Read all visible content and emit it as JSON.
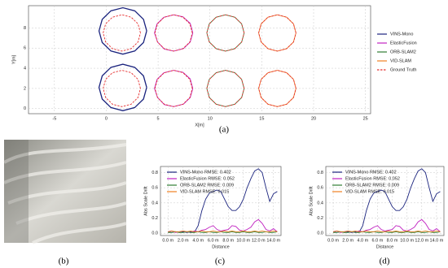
{
  "photo": {
    "label": "(b)"
  },
  "chart_data": [
    {
      "type": "line",
      "label": "(a)",
      "xlabel": "X[m]",
      "ylabel": "Y[m]",
      "xlim": [
        -7.5,
        25.5
      ],
      "ylim": [
        -0.5,
        10.2
      ],
      "xticks": [
        -5,
        0,
        5,
        10,
        15,
        20,
        25
      ],
      "yticks": [
        0,
        2,
        4,
        6,
        8
      ],
      "grid": true,
      "legend": "right",
      "series": [
        {
          "name": "VINS-Mono",
          "color": "#1a237e",
          "dashed": false,
          "x": [
            3.9,
            3.59,
            2.75,
            1.6,
            0.45,
            -0.39,
            -0.7,
            -0.39,
            0.45,
            1.6,
            2.75,
            3.59,
            3.9,
            null,
            3.9,
            3.59,
            2.75,
            1.6,
            0.45,
            -0.39,
            -0.7,
            -0.39,
            0.45,
            1.6,
            2.75,
            3.59,
            3.9
          ],
          "values": [
            7.7,
            8.85,
            9.69,
            10.0,
            9.69,
            8.85,
            7.7,
            6.55,
            5.71,
            5.4,
            5.71,
            6.55,
            7.7,
            null,
            2.1,
            3.25,
            4.09,
            4.4,
            4.09,
            3.25,
            2.1,
            0.95,
            0.11,
            -0.2,
            0.11,
            0.95,
            2.1
          ]
        },
        {
          "name": "ElasticFusion",
          "color": "#c020c0",
          "dashed": false,
          "x": [
            8.35,
            8.1,
            7.4,
            6.5,
            5.55,
            4.9,
            4.65,
            4.95,
            5.6,
            6.5,
            7.45,
            8.1,
            8.35,
            null,
            8.35,
            8.1,
            7.4,
            6.5,
            5.55,
            4.9,
            4.65,
            4.95,
            5.6,
            6.5,
            7.45,
            8.1,
            8.35
          ],
          "values": [
            7.5,
            8.45,
            9.1,
            9.3,
            9.05,
            8.4,
            7.5,
            6.6,
            5.9,
            5.7,
            5.95,
            6.6,
            7.5,
            null,
            2,
            2.95,
            3.6,
            3.8,
            3.55,
            2.9,
            2,
            1.1,
            0.4,
            0.2,
            0.45,
            1.1,
            2
          ]
        },
        {
          "name": "ORB-SLAM2",
          "color": "#2e7d32",
          "dashed": false,
          "x": [
            13.3,
            13.06,
            12.4,
            11.5,
            10.6,
            9.94,
            9.7,
            9.94,
            10.6,
            11.5,
            12.4,
            13.06,
            13.3,
            null,
            13.3,
            13.06,
            12.4,
            11.5,
            10.6,
            9.94,
            9.7,
            9.94,
            10.6,
            11.5,
            12.4,
            13.06,
            13.3
          ],
          "values": [
            7.5,
            8.4,
            9.06,
            9.3,
            9.06,
            8.4,
            7.5,
            6.6,
            5.94,
            5.7,
            5.94,
            6.6,
            7.5,
            null,
            2,
            2.9,
            3.56,
            3.8,
            3.56,
            2.9,
            2,
            1.1,
            0.44,
            0.2,
            0.44,
            1.1,
            2
          ]
        },
        {
          "name": "VID-SLAM",
          "color": "#f08020",
          "dashed": false,
          "x": [
            18.3,
            18.06,
            17.4,
            16.5,
            15.6,
            14.94,
            14.7,
            14.94,
            15.6,
            16.5,
            17.4,
            18.06,
            18.3,
            null,
            18.3,
            18.06,
            17.4,
            16.5,
            15.6,
            14.94,
            14.7,
            14.94,
            15.6,
            16.5,
            17.4,
            18.06,
            18.3
          ],
          "values": [
            7.5,
            8.4,
            9.06,
            9.3,
            9.06,
            8.4,
            7.5,
            6.6,
            5.94,
            5.7,
            5.94,
            6.6,
            7.5,
            null,
            2,
            2.9,
            3.56,
            3.8,
            3.56,
            2.9,
            2,
            1.1,
            0.44,
            0.2,
            0.44,
            1.1,
            2
          ]
        },
        {
          "name": "Ground Truth",
          "color": "#e53030",
          "dashed": true,
          "x": [
            3.3,
            3.06,
            2.4,
            1.5,
            0.6,
            -0.06,
            -0.3,
            -0.06,
            0.6,
            1.5,
            2.4,
            3.06,
            3.3,
            null,
            3.3,
            3.06,
            2.4,
            1.5,
            0.6,
            -0.06,
            -0.3,
            -0.06,
            0.6,
            1.5,
            2.4,
            3.06,
            3.3,
            null,
            8.3,
            8.06,
            7.4,
            6.5,
            5.6,
            4.94,
            4.7,
            4.94,
            5.6,
            6.5,
            7.4,
            8.06,
            8.3,
            null,
            8.3,
            8.06,
            7.4,
            6.5,
            5.6,
            4.94,
            4.7,
            4.94,
            5.6,
            6.5,
            7.4,
            8.06,
            8.3,
            null,
            13.3,
            13.06,
            12.4,
            11.5,
            10.6,
            9.94,
            9.7,
            9.94,
            10.6,
            11.5,
            12.4,
            13.06,
            13.3,
            null,
            13.3,
            13.06,
            12.4,
            11.5,
            10.6,
            9.94,
            9.7,
            9.94,
            10.6,
            11.5,
            12.4,
            13.06,
            13.3,
            null,
            18.3,
            18.06,
            17.4,
            16.5,
            15.6,
            14.94,
            14.7,
            14.94,
            15.6,
            16.5,
            17.4,
            18.06,
            18.3,
            null,
            18.3,
            18.06,
            17.4,
            16.5,
            15.6,
            14.94,
            14.7,
            14.94,
            15.6,
            16.5,
            17.4,
            18.06,
            18.3
          ],
          "values": [
            7.5,
            8.4,
            9.06,
            9.3,
            9.06,
            8.4,
            7.5,
            6.6,
            5.94,
            5.7,
            5.94,
            6.6,
            7.5,
            null,
            2,
            2.9,
            3.56,
            3.8,
            3.56,
            2.9,
            2,
            1.1,
            0.44,
            0.2,
            0.44,
            1.1,
            2,
            null,
            7.5,
            8.4,
            9.06,
            9.3,
            9.06,
            8.4,
            7.5,
            6.6,
            5.94,
            5.7,
            5.94,
            6.6,
            7.5,
            null,
            2,
            2.9,
            3.56,
            3.8,
            3.56,
            2.9,
            2,
            1.1,
            0.44,
            0.2,
            0.44,
            1.1,
            2,
            null,
            7.5,
            8.4,
            9.06,
            9.3,
            9.06,
            8.4,
            7.5,
            6.6,
            5.94,
            5.7,
            5.94,
            6.6,
            7.5,
            null,
            2,
            2.9,
            3.56,
            3.8,
            3.56,
            2.9,
            2,
            1.1,
            0.44,
            0.2,
            0.44,
            1.1,
            2,
            null,
            7.5,
            8.4,
            9.06,
            9.3,
            9.06,
            8.4,
            7.5,
            6.6,
            5.94,
            5.7,
            5.94,
            6.6,
            7.5,
            null,
            2,
            2.9,
            3.56,
            3.8,
            3.56,
            2.9,
            2,
            1.1,
            0.44,
            0.2,
            0.44,
            1.1,
            2
          ]
        }
      ]
    },
    {
      "type": "line",
      "label": "(c)",
      "xlabel": "Distance",
      "ylabel": "Abs Scale Drift",
      "xlim": [
        -1,
        15
      ],
      "ylim": [
        -0.03,
        0.88
      ],
      "xticks": [
        {
          "value": 0,
          "label": "0.0 m"
        },
        {
          "value": 2,
          "label": "2.0 m"
        },
        {
          "value": 4,
          "label": "4.0 m"
        },
        {
          "value": 6,
          "label": "6.0 m"
        },
        {
          "value": 8,
          "label": "8.0 m"
        },
        {
          "value": 10,
          "label": "10.0 m"
        },
        {
          "value": 12,
          "label": "12.0 m"
        },
        {
          "value": 14,
          "label": "14.0 m"
        }
      ],
      "yticks": [
        {
          "value": 0,
          "label": "0.0"
        },
        0.2,
        0.4,
        0.6,
        0.8
      ],
      "grid": true,
      "legend": "upper left",
      "x": [
        0,
        0.5,
        1,
        1.5,
        2,
        2.5,
        3,
        3.5,
        4,
        4.5,
        5,
        5.5,
        6,
        6.5,
        7,
        7.5,
        8,
        8.5,
        9,
        9.5,
        10,
        10.5,
        11,
        11.5,
        12,
        12.5,
        13,
        13.5,
        14,
        14.5
      ],
      "series": [
        {
          "name": "VINS-Mono RMSE: 0.402",
          "color": "#1a237e",
          "values": [
            0.02,
            0.01,
            0.02,
            0.01,
            0.02,
            0.01,
            0.02,
            0.01,
            0.1,
            0.3,
            0.45,
            0.53,
            0.55,
            0.57,
            0.55,
            0.45,
            0.35,
            0.3,
            0.3,
            0.35,
            0.45,
            0.6,
            0.72,
            0.82,
            0.85,
            0.8,
            0.6,
            0.42,
            0.52,
            0.55
          ]
        },
        {
          "name": "ElasticFusion RMSE: 0.052",
          "color": "#c020c0",
          "values": [
            0.02,
            0.03,
            0.01,
            0.02,
            0.03,
            0.02,
            0.01,
            0.03,
            0.02,
            0.04,
            0.05,
            0.08,
            0.1,
            0.05,
            0.03,
            0.04,
            0.05,
            0.1,
            0.09,
            0.04,
            0.03,
            0.05,
            0.08,
            0.15,
            0.18,
            0.13,
            0.05,
            0.03,
            0.06,
            0.02
          ]
        },
        {
          "name": "ORB-SLAM2 RMSE: 0.009",
          "color": "#2e7d32",
          "values": [
            0.01,
            0.01,
            0.02,
            0.01,
            0.01,
            0.02,
            0.01,
            0.01,
            0.02,
            0.01,
            0.01,
            0.02,
            0.01,
            0.01,
            0.02,
            0.01,
            0.01,
            0.02,
            0.01,
            0.01,
            0.02,
            0.01,
            0.01,
            0.02,
            0.01,
            0.01,
            0.02,
            0.01,
            0.01,
            0.02
          ]
        },
        {
          "name": "VID-SLAM RMSE: 0.015",
          "color": "#f08020",
          "values": [
            0.02,
            0.03,
            0.02,
            0.02,
            0.03,
            0.02,
            0.03,
            0.02,
            0.02,
            0.03,
            0.02,
            0.02,
            0.03,
            0.02,
            0.02,
            0.03,
            0.02,
            0.03,
            0.02,
            0.02,
            0.03,
            0.02,
            0.02,
            0.03,
            0.02,
            0.03,
            0.02,
            0.02,
            0.03,
            0.02
          ]
        }
      ]
    },
    {
      "type": "line",
      "label": "(d)",
      "xlabel": "Distance",
      "ylabel": "Abs Scale Drift",
      "xlim": [
        -1,
        15
      ],
      "ylim": [
        -0.03,
        0.88
      ],
      "xticks": [
        {
          "value": 0,
          "label": "0.0 m"
        },
        {
          "value": 2,
          "label": "2.0 m"
        },
        {
          "value": 4,
          "label": "4.0 m"
        },
        {
          "value": 6,
          "label": "6.0 m"
        },
        {
          "value": 8,
          "label": "8.0 m"
        },
        {
          "value": 10,
          "label": "10.0 m"
        },
        {
          "value": 12,
          "label": "12.0 m"
        },
        {
          "value": 14,
          "label": "14.0 m"
        }
      ],
      "yticks": [
        {
          "value": 0,
          "label": "0.0"
        },
        0.2,
        0.4,
        0.6,
        0.8
      ],
      "grid": true,
      "legend": "upper left",
      "x": [
        0,
        0.5,
        1,
        1.5,
        2,
        2.5,
        3,
        3.5,
        4,
        4.5,
        5,
        5.5,
        6,
        6.5,
        7,
        7.5,
        8,
        8.5,
        9,
        9.5,
        10,
        10.5,
        11,
        11.5,
        12,
        12.5,
        13,
        13.5,
        14,
        14.5
      ],
      "series": [
        {
          "name": "VINS-Mono RMSE: 0.402",
          "color": "#1a237e",
          "values": [
            0.02,
            0.01,
            0.02,
            0.01,
            0.02,
            0.01,
            0.02,
            0.01,
            0.1,
            0.3,
            0.45,
            0.53,
            0.55,
            0.57,
            0.55,
            0.45,
            0.35,
            0.3,
            0.3,
            0.35,
            0.45,
            0.6,
            0.72,
            0.82,
            0.85,
            0.8,
            0.6,
            0.42,
            0.52,
            0.55
          ]
        },
        {
          "name": "ElasticFusion RMSE: 0.052",
          "color": "#c020c0",
          "values": [
            0.02,
            0.03,
            0.01,
            0.02,
            0.03,
            0.02,
            0.01,
            0.03,
            0.02,
            0.04,
            0.05,
            0.08,
            0.1,
            0.05,
            0.03,
            0.04,
            0.05,
            0.1,
            0.09,
            0.04,
            0.03,
            0.05,
            0.08,
            0.15,
            0.18,
            0.13,
            0.05,
            0.03,
            0.06,
            0.02
          ]
        },
        {
          "name": "ORB-SLAM2 RMSE: 0.009",
          "color": "#2e7d32",
          "values": [
            0.01,
            0.01,
            0.02,
            0.01,
            0.01,
            0.02,
            0.01,
            0.01,
            0.02,
            0.01,
            0.01,
            0.02,
            0.01,
            0.01,
            0.02,
            0.01,
            0.01,
            0.02,
            0.01,
            0.01,
            0.02,
            0.01,
            0.01,
            0.02,
            0.01,
            0.01,
            0.02,
            0.01,
            0.01,
            0.02
          ]
        },
        {
          "name": "VID-SLAM RMSE: 0.015",
          "color": "#f08020",
          "values": [
            0.02,
            0.03,
            0.02,
            0.02,
            0.03,
            0.02,
            0.03,
            0.02,
            0.02,
            0.03,
            0.02,
            0.02,
            0.03,
            0.02,
            0.02,
            0.03,
            0.02,
            0.03,
            0.02,
            0.02,
            0.03,
            0.02,
            0.02,
            0.03,
            0.02,
            0.03,
            0.02,
            0.02,
            0.03,
            0.02
          ]
        }
      ]
    }
  ]
}
